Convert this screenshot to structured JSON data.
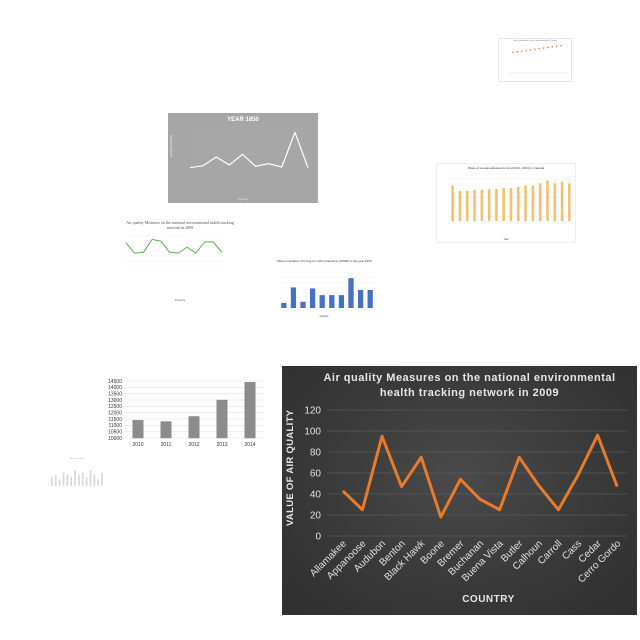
{
  "chart_data": [
    {
      "type": "line",
      "title": "Urban population living in environmental % (India)",
      "series_color": "#ED7D31",
      "values": [
        45,
        46,
        47,
        48,
        49,
        50,
        51,
        52,
        53,
        54,
        55,
        56
      ]
    },
    {
      "type": "line",
      "title": "YEAR 1850",
      "xlabel": "Country",
      "ylabel": "population (millions)",
      "series_color": "#FFFFFF",
      "background": "#A6A6A6",
      "values": [
        2,
        5,
        18,
        6,
        22,
        4,
        8,
        3,
        55,
        2
      ]
    },
    {
      "type": "bar",
      "title": "Share of cereals allocated to food (FAO, 2024) in Canada",
      "xlabel": "Year",
      "ylabel": "Share of cereals allocated to food (%)",
      "series_color": "#F4C06E",
      "values": [
        19,
        16,
        16,
        16.5,
        16.5,
        17,
        17,
        17.5,
        17.5,
        18,
        19,
        19,
        20,
        21.5,
        20,
        21,
        20
      ]
    },
    {
      "type": "line",
      "title": "Air quality Measures on the national environmental health tracking network in 2009",
      "xlabel": "Country",
      "ylabel": "Value of air quality",
      "series_color": "#5BB04C",
      "values": [
        27,
        15,
        16,
        31,
        29,
        16,
        15,
        22,
        15,
        28,
        28,
        16
      ]
    },
    {
      "type": "bar",
      "title": "Urban population (%) long-run with  projections (OWID) in the year 1960",
      "xlabel": "Country",
      "ylabel": "Urban population",
      "series_color": "#4472C4",
      "values": [
        10,
        40,
        12,
        38,
        25,
        25,
        25,
        58,
        35,
        35
      ]
    },
    {
      "type": "bar",
      "categories": [
        "2010",
        "2011",
        "2012",
        "2013",
        "2014"
      ],
      "values": [
        11400,
        11300,
        11700,
        13000,
        14400
      ],
      "yticks": [
        "10000",
        "10500",
        "11000",
        "11500",
        "12000",
        "12500",
        "13000",
        "13500",
        "14000",
        "14500"
      ],
      "ylim": [
        10000,
        14500
      ],
      "series_color": "#8C8C8C"
    },
    {
      "type": "bar",
      "title": "Share of cereals",
      "series_color": "#D9D9D9",
      "values": [
        4,
        5,
        3,
        6,
        5,
        4,
        7,
        5,
        6,
        4,
        7,
        5,
        3,
        6
      ]
    },
    {
      "type": "line",
      "title": "Air quality Measures on the national environmental health tracking network in 2009",
      "xlabel": "COUNTRY",
      "ylabel": "VALUE OF AIR QUALITY",
      "categories": [
        "Allamakee",
        "Appanoose",
        "Audubon",
        "Benton",
        "Black Hawk",
        "Boone",
        "Bremer",
        "Buchanan",
        "Buena Vista",
        "Butler",
        "Calhoun",
        "Carroll",
        "Cass",
        "Cedar",
        "Cerro Gordo"
      ],
      "values": [
        43,
        25,
        95,
        47,
        75,
        18,
        54,
        35,
        25,
        75,
        48,
        25,
        58,
        96,
        47
      ],
      "ylim": [
        0,
        120
      ],
      "yticks": [
        "0",
        "20",
        "40",
        "60",
        "80",
        "100",
        "120"
      ],
      "series_color": "#E87A2C",
      "background": "#3A3A3A"
    }
  ]
}
